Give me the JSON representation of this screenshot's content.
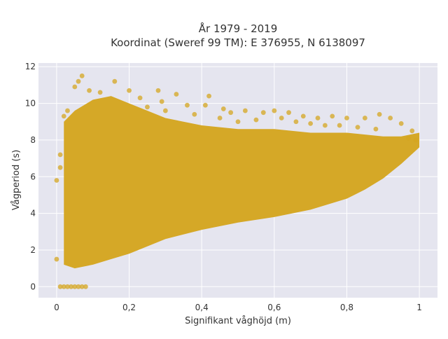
{
  "chart_data": {
    "type": "scatter",
    "title": [
      "År 1979 - 2019",
      "Koordinat (Sweref 99 TM): E 376955, N 6138097"
    ],
    "xlabel": "Signifikant våghöjd (m)",
    "ylabel": "Vågperiod (s)",
    "xlim": [
      -0.05,
      1.05
    ],
    "ylim": [
      -0.6,
      12.2
    ],
    "xticks": [
      0,
      0.2,
      0.4,
      0.6,
      0.8,
      1
    ],
    "xtick_labels": [
      "0",
      "0,2",
      "0,4",
      "0,6",
      "0,8",
      "1"
    ],
    "yticks": [
      0,
      2,
      4,
      6,
      8,
      10,
      12
    ],
    "ytick_labels": [
      "0",
      "2",
      "4",
      "6",
      "8",
      "10",
      "12"
    ],
    "grid": true,
    "marker_color": "#d4a520",
    "background_color": "#e5e5ef",
    "density_band": [
      {
        "x": 0.02,
        "ymin": 1.2,
        "ymax": 9.0
      },
      {
        "x": 0.05,
        "ymin": 1.0,
        "ymax": 9.6
      },
      {
        "x": 0.1,
        "ymin": 1.2,
        "ymax": 10.2
      },
      {
        "x": 0.15,
        "ymin": 1.5,
        "ymax": 10.4
      },
      {
        "x": 0.2,
        "ymin": 1.8,
        "ymax": 10.0
      },
      {
        "x": 0.25,
        "ymin": 2.2,
        "ymax": 9.6
      },
      {
        "x": 0.3,
        "ymin": 2.6,
        "ymax": 9.2
      },
      {
        "x": 0.4,
        "ymin": 3.1,
        "ymax": 8.8
      },
      {
        "x": 0.5,
        "ymin": 3.5,
        "ymax": 8.6
      },
      {
        "x": 0.6,
        "ymin": 3.8,
        "ymax": 8.6
      },
      {
        "x": 0.7,
        "ymin": 4.2,
        "ymax": 8.4
      },
      {
        "x": 0.8,
        "ymin": 4.8,
        "ymax": 8.4
      },
      {
        "x": 0.85,
        "ymin": 5.3,
        "ymax": 8.3
      },
      {
        "x": 0.9,
        "ymin": 5.9,
        "ymax": 8.2
      },
      {
        "x": 0.95,
        "ymin": 6.7,
        "ymax": 8.2
      },
      {
        "x": 1.0,
        "ymin": 7.6,
        "ymax": 8.4
      }
    ],
    "points": [
      [
        0.07,
        11.5
      ],
      [
        0.06,
        11.2
      ],
      [
        0.16,
        11.2
      ],
      [
        0.05,
        10.9
      ],
      [
        0.09,
        10.7
      ],
      [
        0.12,
        10.6
      ],
      [
        0.2,
        10.7
      ],
      [
        0.28,
        10.7
      ],
      [
        0.33,
        10.5
      ],
      [
        0.42,
        10.4
      ],
      [
        0.23,
        10.3
      ],
      [
        0.29,
        10.1
      ],
      [
        0.36,
        9.9
      ],
      [
        0.41,
        9.9
      ],
      [
        0.46,
        9.7
      ],
      [
        0.48,
        9.5
      ],
      [
        0.52,
        9.6
      ],
      [
        0.57,
        9.5
      ],
      [
        0.6,
        9.6
      ],
      [
        0.64,
        9.5
      ],
      [
        0.68,
        9.3
      ],
      [
        0.72,
        9.2
      ],
      [
        0.76,
        9.3
      ],
      [
        0.8,
        9.2
      ],
      [
        0.85,
        9.2
      ],
      [
        0.89,
        9.4
      ],
      [
        0.92,
        9.2
      ],
      [
        0.95,
        8.9
      ],
      [
        0.98,
        8.5
      ],
      [
        0.66,
        9.0
      ],
      [
        0.7,
        8.9
      ],
      [
        0.74,
        8.8
      ],
      [
        0.55,
        9.1
      ],
      [
        0.5,
        9.0
      ],
      [
        0.45,
        9.2
      ],
      [
        0.38,
        9.4
      ],
      [
        0.3,
        9.6
      ],
      [
        0.25,
        9.8
      ],
      [
        0.03,
        9.6
      ],
      [
        0.02,
        9.3
      ],
      [
        0.01,
        6.5
      ],
      [
        0.0,
        1.5
      ],
      [
        0.0,
        5.8
      ],
      [
        0.01,
        7.2
      ],
      [
        0.97,
        8.1
      ],
      [
        0.99,
        8.0
      ],
      [
        0.88,
        8.6
      ],
      [
        0.83,
        8.7
      ],
      [
        0.78,
        8.8
      ],
      [
        0.62,
        9.2
      ],
      [
        0.01,
        0.0
      ],
      [
        0.02,
        0.0
      ],
      [
        0.03,
        0.0
      ],
      [
        0.04,
        0.0
      ],
      [
        0.05,
        0.0
      ],
      [
        0.06,
        0.0
      ],
      [
        0.07,
        0.0
      ],
      [
        0.08,
        0.0
      ]
    ]
  }
}
